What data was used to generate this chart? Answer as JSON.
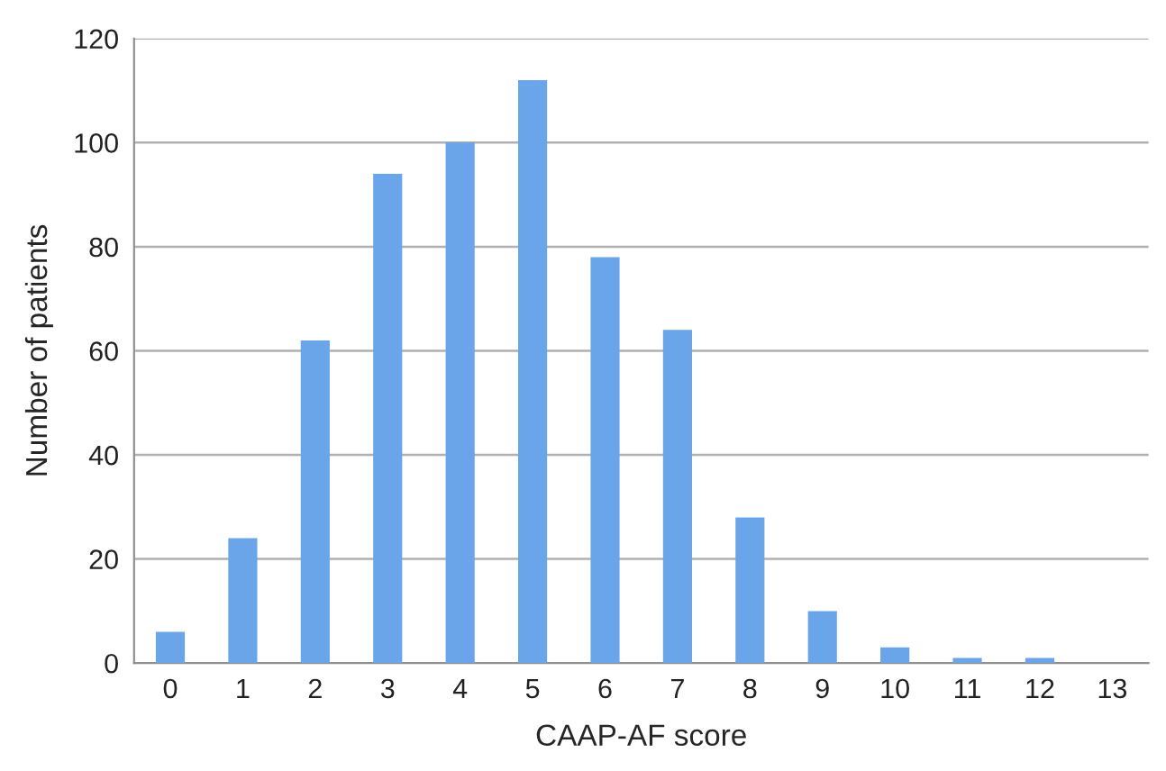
{
  "chart_data": {
    "type": "bar",
    "xlabel": "CAAP-AF score",
    "ylabel": "Number of patients",
    "categories": [
      "0",
      "1",
      "2",
      "3",
      "4",
      "5",
      "6",
      "7",
      "8",
      "9",
      "10",
      "11",
      "12",
      "13"
    ],
    "values": [
      6,
      24,
      62,
      94,
      100,
      112,
      78,
      64,
      28,
      10,
      3,
      1,
      1,
      0
    ],
    "color": "#6aa5ea",
    "ylim": [
      0,
      120
    ],
    "yticks": [
      0,
      20,
      40,
      60,
      80,
      100,
      120
    ],
    "grid": "y"
  }
}
